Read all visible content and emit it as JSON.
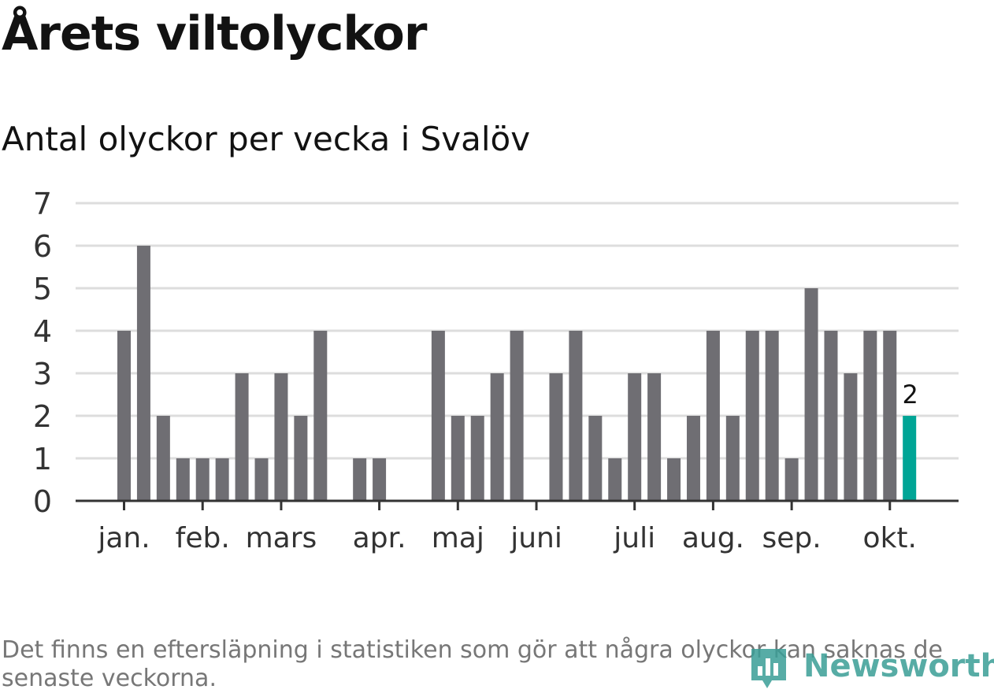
{
  "chart_data": {
    "type": "bar",
    "title": "Årets viltolyckor",
    "subtitle": "Antal olyckor per vecka i Svalöv",
    "xlabel": "",
    "ylabel": "",
    "ylim": [
      0,
      7
    ],
    "yticks": [
      "0",
      "1",
      "2",
      "3",
      "4",
      "5",
      "6",
      "7"
    ],
    "grid": true,
    "month_labels": [
      {
        "label": "jan.",
        "week": 1
      },
      {
        "label": "feb.",
        "week": 5
      },
      {
        "label": "mars",
        "week": 9
      },
      {
        "label": "apr.",
        "week": 14
      },
      {
        "label": "maj",
        "week": 18
      },
      {
        "label": "juni",
        "week": 22
      },
      {
        "label": "juli",
        "week": 27
      },
      {
        "label": "aug.",
        "week": 31
      },
      {
        "label": "sep.",
        "week": 35
      },
      {
        "label": "okt.",
        "week": 40
      }
    ],
    "weeks": [
      1,
      2,
      3,
      4,
      5,
      6,
      7,
      8,
      9,
      10,
      11,
      12,
      13,
      14,
      15,
      16,
      17,
      18,
      19,
      20,
      21,
      22,
      23,
      24,
      25,
      26,
      27,
      28,
      29,
      30,
      31,
      32,
      33,
      34,
      35,
      36,
      37,
      38,
      39,
      40,
      41
    ],
    "values": [
      4,
      6,
      2,
      1,
      1,
      1,
      3,
      1,
      3,
      2,
      4,
      0,
      1,
      1,
      0,
      0,
      4,
      2,
      2,
      3,
      4,
      0,
      3,
      4,
      2,
      1,
      3,
      3,
      1,
      2,
      4,
      2,
      4,
      4,
      1,
      5,
      4,
      3,
      4,
      4,
      2
    ],
    "highlight_index": 40,
    "highlight_label": "2",
    "bar_color": "#6f6e73",
    "highlight_color": "#00a596"
  },
  "footnote": "Det finns en eftersläpning i statistiken som gör att några olyckor kan saknas de senaste veckorna.",
  "logo": {
    "text": "Newsworthy",
    "color": "#3a9e96"
  }
}
